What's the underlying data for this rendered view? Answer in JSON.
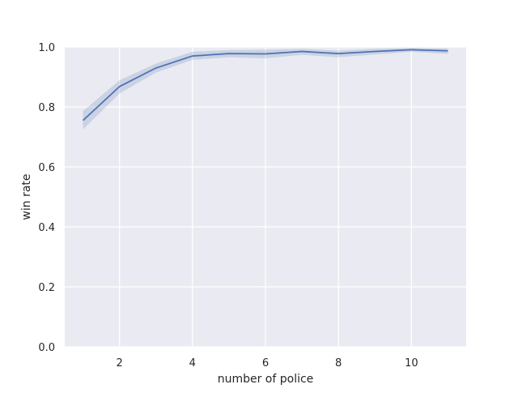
{
  "chart_data": {
    "type": "line",
    "xlabel": "number of police",
    "ylabel": "win rate",
    "xlim": [
      0.5,
      11.5
    ],
    "ylim": [
      0.0,
      1.0
    ],
    "xticks": [
      2,
      4,
      6,
      8,
      10
    ],
    "xtick_labels": [
      "2",
      "4",
      "6",
      "8",
      "10"
    ],
    "yticks": [
      0.0,
      0.2,
      0.4,
      0.6,
      0.8,
      1.0
    ],
    "ytick_labels": [
      "0.0",
      "0.2",
      "0.4",
      "0.6",
      "0.8",
      "1.0"
    ],
    "grid": true,
    "series": [
      {
        "x": [
          1,
          2,
          3,
          4,
          5,
          6,
          7,
          8,
          9,
          10,
          11
        ],
        "y": [
          0.755,
          0.868,
          0.93,
          0.97,
          0.978,
          0.977,
          0.985,
          0.978,
          0.985,
          0.991,
          0.987
        ],
        "ci_lower": [
          0.725,
          0.845,
          0.915,
          0.957,
          0.966,
          0.962,
          0.974,
          0.966,
          0.975,
          0.984,
          0.977
        ],
        "ci_upper": [
          0.786,
          0.889,
          0.945,
          0.984,
          0.99,
          0.991,
          0.994,
          0.988,
          0.994,
          0.997,
          0.995
        ]
      }
    ],
    "colors": {
      "line": "#4c72b0",
      "band": "#4c72b0",
      "background": "#eaeaf2",
      "grid": "#ffffff"
    }
  }
}
